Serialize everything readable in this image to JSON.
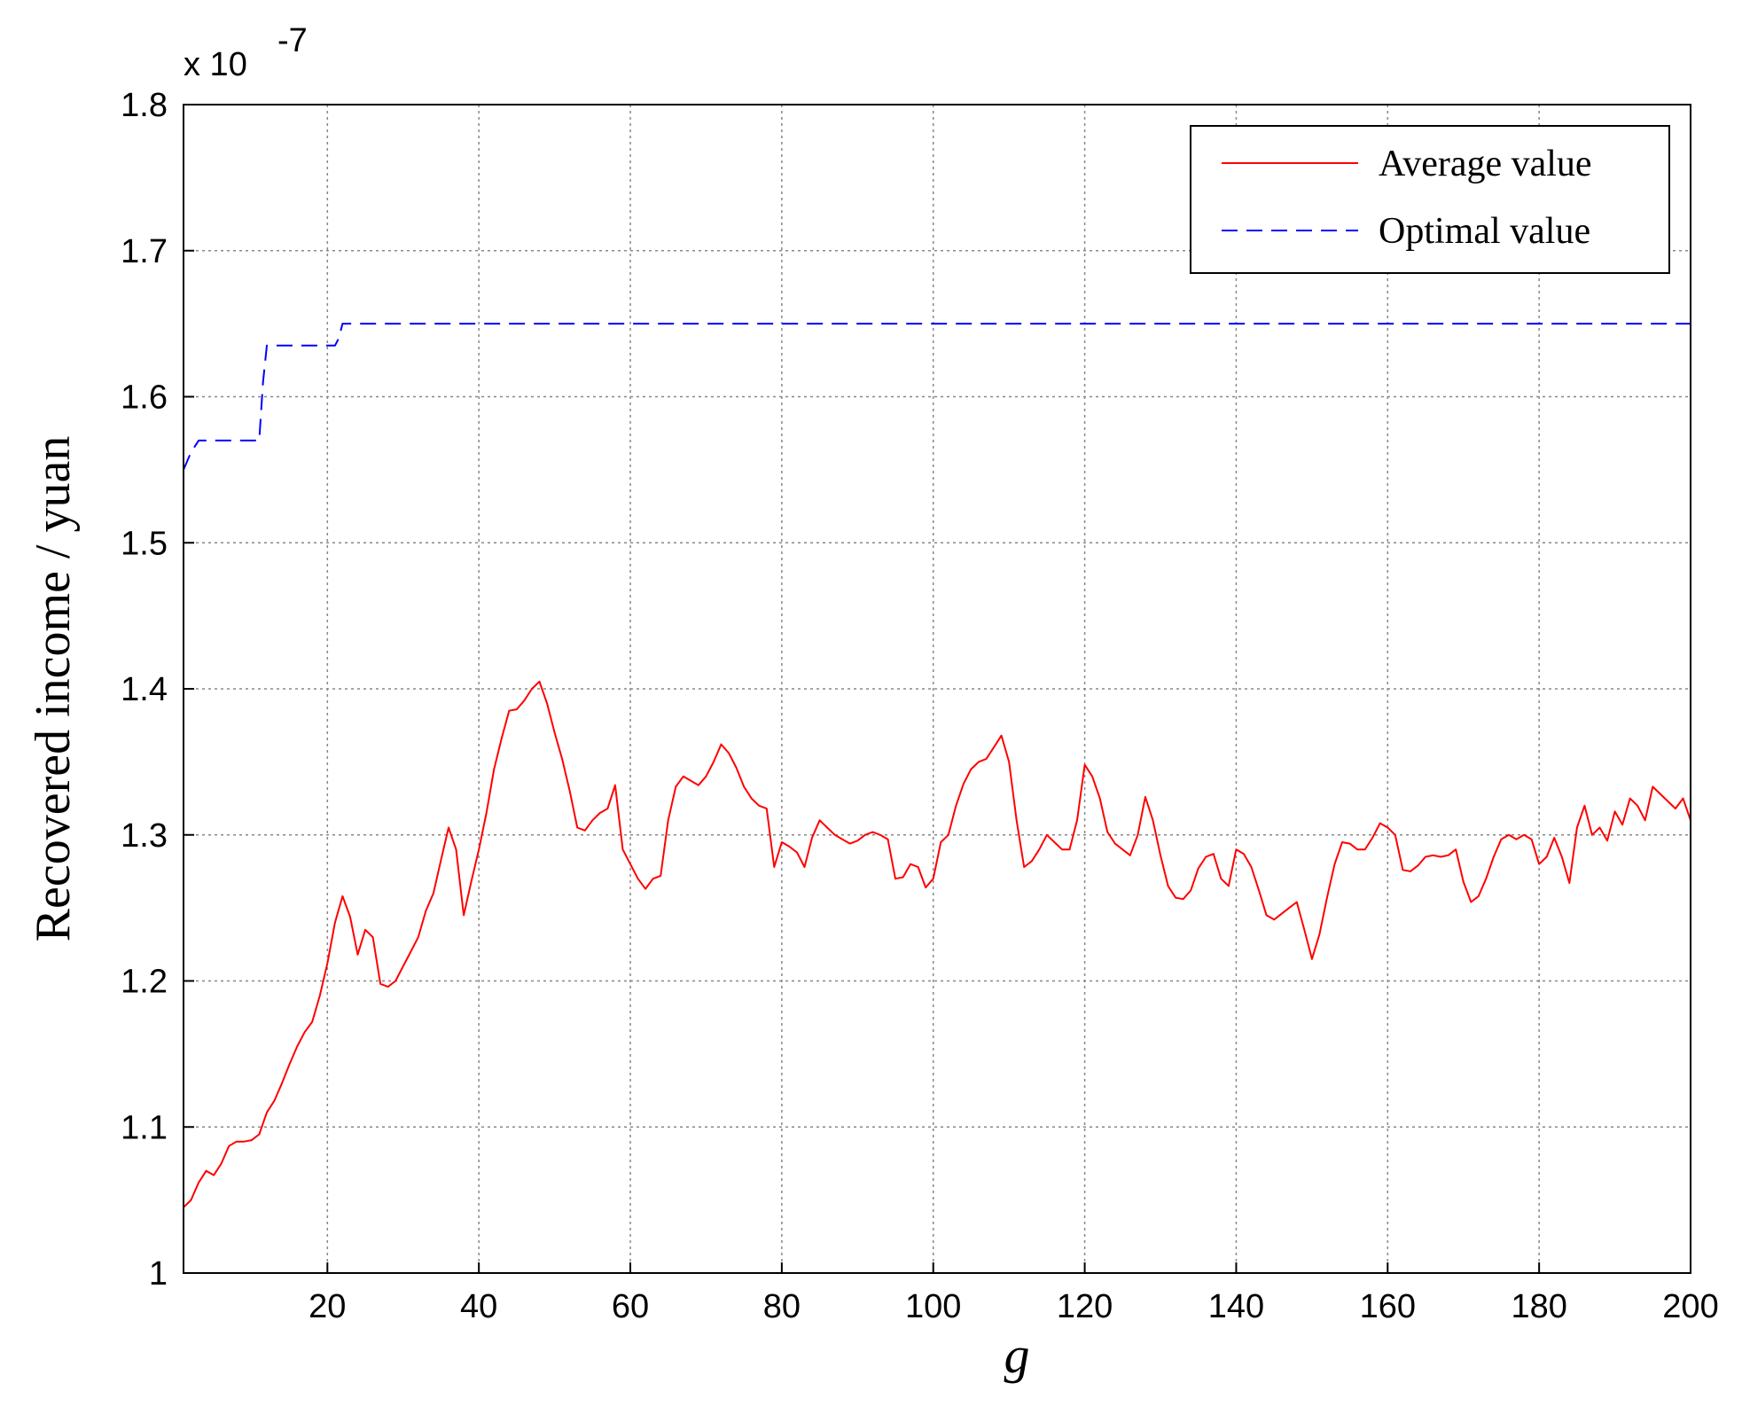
{
  "chart_data": {
    "type": "line",
    "title": "",
    "xlabel": "g",
    "ylabel": "Recovered income / yuan",
    "y_exponent_label": "x 10",
    "y_exponent": "-7",
    "xlim": [
      1,
      200
    ],
    "ylim": [
      1.0,
      1.8
    ],
    "xticks": [
      20,
      40,
      60,
      80,
      100,
      120,
      140,
      160,
      180,
      200
    ],
    "xtick_labels": [
      "20",
      "40",
      "60",
      "80",
      "100",
      "120",
      "140",
      "160",
      "180",
      "200"
    ],
    "yticks": [
      1.0,
      1.1,
      1.2,
      1.3,
      1.4,
      1.5,
      1.6,
      1.7,
      1.8
    ],
    "ytick_labels": [
      "1",
      "1.1",
      "1.2",
      "1.3",
      "1.4",
      "1.5",
      "1.6",
      "1.7",
      "1.8"
    ],
    "grid": true,
    "legend_position": "top-right",
    "series": [
      {
        "name": "Average value",
        "color": "#ff0000",
        "style": "solid",
        "points": [
          [
            1,
            1.045
          ],
          [
            2,
            1.05
          ],
          [
            3,
            1.062
          ],
          [
            4,
            1.07
          ],
          [
            5,
            1.067
          ],
          [
            6,
            1.075
          ],
          [
            7,
            1.087
          ],
          [
            8,
            1.09
          ],
          [
            9,
            1.09
          ],
          [
            10,
            1.091
          ],
          [
            11,
            1.095
          ],
          [
            12,
            1.11
          ],
          [
            13,
            1.118
          ],
          [
            14,
            1.13
          ],
          [
            15,
            1.143
          ],
          [
            16,
            1.155
          ],
          [
            17,
            1.165
          ],
          [
            18,
            1.172
          ],
          [
            19,
            1.19
          ],
          [
            20,
            1.212
          ],
          [
            21,
            1.24
          ],
          [
            22,
            1.258
          ],
          [
            23,
            1.244
          ],
          [
            24,
            1.218
          ],
          [
            25,
            1.235
          ],
          [
            26,
            1.23
          ],
          [
            27,
            1.198
          ],
          [
            28,
            1.196
          ],
          [
            29,
            1.2
          ],
          [
            30,
            1.21
          ],
          [
            31,
            1.22
          ],
          [
            32,
            1.23
          ],
          [
            33,
            1.248
          ],
          [
            34,
            1.26
          ],
          [
            35,
            1.283
          ],
          [
            36,
            1.305
          ],
          [
            37,
            1.29
          ],
          [
            38,
            1.245
          ],
          [
            39,
            1.268
          ],
          [
            40,
            1.29
          ],
          [
            41,
            1.315
          ],
          [
            42,
            1.345
          ],
          [
            43,
            1.366
          ],
          [
            44,
            1.385
          ],
          [
            45,
            1.386
          ],
          [
            46,
            1.392
          ],
          [
            47,
            1.4
          ],
          [
            48,
            1.405
          ],
          [
            49,
            1.39
          ],
          [
            50,
            1.37
          ],
          [
            51,
            1.352
          ],
          [
            52,
            1.33
          ],
          [
            53,
            1.305
          ],
          [
            54,
            1.303
          ],
          [
            55,
            1.31
          ],
          [
            56,
            1.315
          ],
          [
            57,
            1.318
          ],
          [
            58,
            1.334
          ],
          [
            59,
            1.29
          ],
          [
            60,
            1.28
          ],
          [
            61,
            1.27
          ],
          [
            62,
            1.263
          ],
          [
            63,
            1.27
          ],
          [
            64,
            1.272
          ],
          [
            65,
            1.31
          ],
          [
            66,
            1.333
          ],
          [
            67,
            1.34
          ],
          [
            68,
            1.337
          ],
          [
            69,
            1.334
          ],
          [
            70,
            1.34
          ],
          [
            71,
            1.35
          ],
          [
            72,
            1.362
          ],
          [
            73,
            1.356
          ],
          [
            74,
            1.346
          ],
          [
            75,
            1.333
          ],
          [
            76,
            1.325
          ],
          [
            77,
            1.32
          ],
          [
            78,
            1.318
          ],
          [
            79,
            1.278
          ],
          [
            80,
            1.295
          ],
          [
            81,
            1.292
          ],
          [
            82,
            1.288
          ],
          [
            83,
            1.278
          ],
          [
            84,
            1.298
          ],
          [
            85,
            1.31
          ],
          [
            86,
            1.305
          ],
          [
            87,
            1.3
          ],
          [
            88,
            1.297
          ],
          [
            89,
            1.294
          ],
          [
            90,
            1.296
          ],
          [
            91,
            1.3
          ],
          [
            92,
            1.302
          ],
          [
            93,
            1.3
          ],
          [
            94,
            1.297
          ],
          [
            95,
            1.27
          ],
          [
            96,
            1.271
          ],
          [
            97,
            1.28
          ],
          [
            98,
            1.278
          ],
          [
            99,
            1.264
          ],
          [
            100,
            1.27
          ],
          [
            101,
            1.295
          ],
          [
            102,
            1.3
          ],
          [
            103,
            1.32
          ],
          [
            104,
            1.335
          ],
          [
            105,
            1.345
          ],
          [
            106,
            1.35
          ],
          [
            107,
            1.352
          ],
          [
            108,
            1.36
          ],
          [
            109,
            1.368
          ],
          [
            110,
            1.35
          ],
          [
            111,
            1.31
          ],
          [
            112,
            1.278
          ],
          [
            113,
            1.282
          ],
          [
            114,
            1.29
          ],
          [
            115,
            1.3
          ],
          [
            116,
            1.295
          ],
          [
            117,
            1.29
          ],
          [
            118,
            1.29
          ],
          [
            119,
            1.31
          ],
          [
            120,
            1.348
          ],
          [
            121,
            1.34
          ],
          [
            122,
            1.325
          ],
          [
            123,
            1.302
          ],
          [
            124,
            1.294
          ],
          [
            125,
            1.29
          ],
          [
            126,
            1.286
          ],
          [
            127,
            1.3
          ],
          [
            128,
            1.326
          ],
          [
            129,
            1.31
          ],
          [
            130,
            1.286
          ],
          [
            131,
            1.265
          ],
          [
            132,
            1.257
          ],
          [
            133,
            1.256
          ],
          [
            134,
            1.262
          ],
          [
            135,
            1.277
          ],
          [
            136,
            1.285
          ],
          [
            137,
            1.287
          ],
          [
            138,
            1.27
          ],
          [
            139,
            1.265
          ],
          [
            140,
            1.29
          ],
          [
            141,
            1.287
          ],
          [
            142,
            1.278
          ],
          [
            143,
            1.262
          ],
          [
            144,
            1.245
          ],
          [
            145,
            1.242
          ],
          [
            146,
            1.246
          ],
          [
            147,
            1.25
          ],
          [
            148,
            1.254
          ],
          [
            149,
            1.235
          ],
          [
            150,
            1.215
          ],
          [
            151,
            1.232
          ],
          [
            152,
            1.257
          ],
          [
            153,
            1.28
          ],
          [
            154,
            1.295
          ],
          [
            155,
            1.294
          ],
          [
            156,
            1.29
          ],
          [
            157,
            1.29
          ],
          [
            158,
            1.298
          ],
          [
            159,
            1.308
          ],
          [
            160,
            1.305
          ],
          [
            161,
            1.3
          ],
          [
            162,
            1.276
          ],
          [
            163,
            1.275
          ],
          [
            164,
            1.279
          ],
          [
            165,
            1.285
          ],
          [
            166,
            1.286
          ],
          [
            167,
            1.285
          ],
          [
            168,
            1.286
          ],
          [
            169,
            1.29
          ],
          [
            170,
            1.268
          ],
          [
            171,
            1.254
          ],
          [
            172,
            1.258
          ],
          [
            173,
            1.27
          ],
          [
            174,
            1.285
          ],
          [
            175,
            1.297
          ],
          [
            176,
            1.3
          ],
          [
            177,
            1.297
          ],
          [
            178,
            1.3
          ],
          [
            179,
            1.297
          ],
          [
            180,
            1.28
          ],
          [
            181,
            1.285
          ],
          [
            182,
            1.298
          ],
          [
            183,
            1.285
          ],
          [
            184,
            1.267
          ],
          [
            185,
            1.305
          ],
          [
            186,
            1.32
          ],
          [
            187,
            1.3
          ],
          [
            188,
            1.305
          ],
          [
            189,
            1.296
          ],
          [
            190,
            1.316
          ],
          [
            191,
            1.307
          ],
          [
            192,
            1.325
          ],
          [
            193,
            1.32
          ],
          [
            194,
            1.31
          ],
          [
            195,
            1.333
          ],
          [
            196,
            1.328
          ],
          [
            197,
            1.323
          ],
          [
            198,
            1.318
          ],
          [
            199,
            1.325
          ],
          [
            200,
            1.31
          ]
        ]
      },
      {
        "name": "Optimal value",
        "color": "#0000ff",
        "style": "dashed",
        "points": [
          [
            1,
            1.55
          ],
          [
            2,
            1.562
          ],
          [
            3,
            1.57
          ],
          [
            11,
            1.57
          ],
          [
            11.5,
            1.61
          ],
          [
            12,
            1.635
          ],
          [
            21,
            1.635
          ],
          [
            21.5,
            1.64
          ],
          [
            22,
            1.65
          ],
          [
            200,
            1.65
          ]
        ]
      }
    ]
  }
}
